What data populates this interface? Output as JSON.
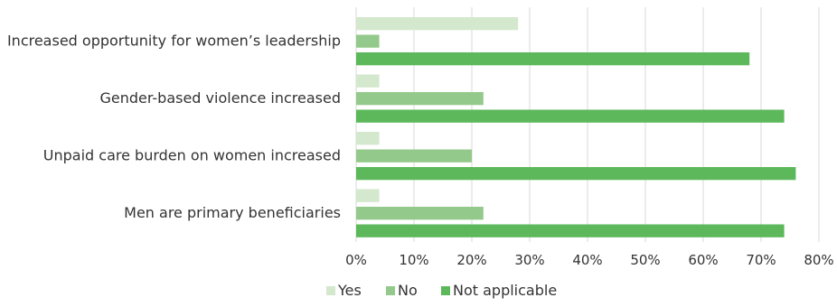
{
  "chart_data": {
    "type": "bar",
    "orientation": "horizontal",
    "categories": [
      "Increased opportunity for women’s leadership",
      "Gender-based violence increased",
      "Unpaid care burden on women increased",
      "Men are primary beneficiaries"
    ],
    "series": [
      {
        "name": "Yes",
        "color": "#d3e8cc",
        "values": [
          28,
          4,
          4,
          4
        ]
      },
      {
        "name": "No",
        "color": "#93c98a",
        "values": [
          4,
          22,
          20,
          22
        ]
      },
      {
        "name": "Not applicable",
        "color": "#5cb85a",
        "values": [
          68,
          74,
          76,
          74
        ]
      }
    ],
    "xlim": [
      0,
      80
    ],
    "xticks": [
      "0%",
      "10%",
      "20%",
      "30%",
      "40%",
      "50%",
      "60%",
      "70%",
      "80%"
    ],
    "unit": "%",
    "grid": true,
    "legend_position": "bottom"
  }
}
